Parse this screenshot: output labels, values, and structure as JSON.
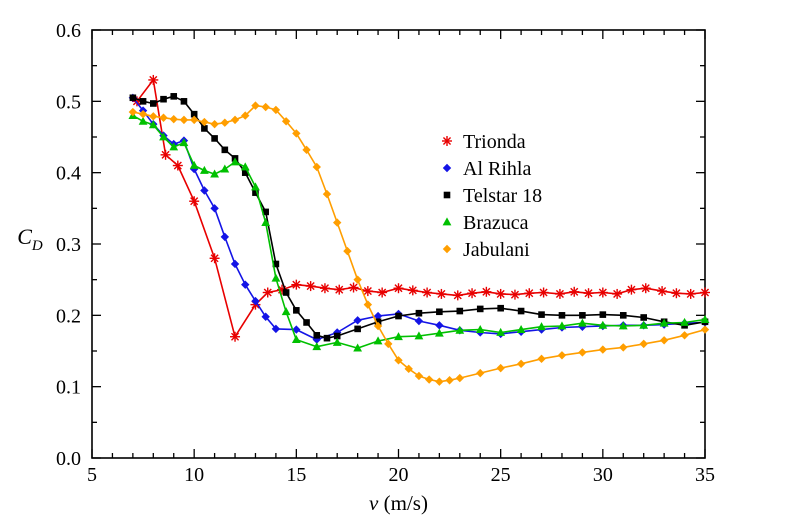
{
  "chart_data": {
    "type": "line",
    "title": "",
    "xlabel": "v (m/s)",
    "ylabel": "C_D",
    "xlabel_parts": [
      {
        "text": "v",
        "italic": true,
        "sub": false
      },
      {
        "text": " (m/s)",
        "italic": false,
        "sub": false
      }
    ],
    "ylabel_parts": [
      {
        "text": "C",
        "italic": true,
        "sub": false
      },
      {
        "text": "D",
        "italic": true,
        "sub": true
      }
    ],
    "xlim": [
      5,
      35
    ],
    "ylim": [
      0.0,
      0.6
    ],
    "x_ticks_major": [
      5,
      10,
      15,
      20,
      25,
      30,
      35
    ],
    "x_minor_step": 1,
    "y_ticks_major": [
      0.0,
      0.1,
      0.2,
      0.3,
      0.4,
      0.5,
      0.6
    ],
    "y_minor_step": 0.05,
    "grid": false,
    "legend_position": "inside-upper-right",
    "frame_color": "#000000",
    "series": [
      {
        "name": "Trionda",
        "color": "#e80000",
        "marker": "star",
        "x": [
          7.2,
          8.0,
          8.6,
          9.2,
          10,
          11,
          12,
          13,
          13.6,
          14.3,
          15,
          15.7,
          16.4,
          17.1,
          17.8,
          18.5,
          19.2,
          20,
          20.7,
          21.4,
          22.1,
          22.9,
          23.6,
          24.3,
          25,
          25.7,
          26.4,
          27.1,
          27.9,
          28.6,
          29.3,
          30,
          30.7,
          31.4,
          32.1,
          32.9,
          33.6,
          34.3,
          35
        ],
        "y": [
          0.5,
          0.53,
          0.425,
          0.41,
          0.36,
          0.28,
          0.17,
          0.215,
          0.232,
          0.236,
          0.243,
          0.241,
          0.238,
          0.236,
          0.239,
          0.234,
          0.232,
          0.238,
          0.235,
          0.232,
          0.23,
          0.228,
          0.231,
          0.233,
          0.23,
          0.229,
          0.231,
          0.232,
          0.23,
          0.233,
          0.231,
          0.232,
          0.23,
          0.236,
          0.238,
          0.234,
          0.231,
          0.23,
          0.232
        ]
      },
      {
        "name": "Al Rihla",
        "color": "#1414e6",
        "marker": "diamond",
        "x": [
          7,
          7.5,
          8,
          8.5,
          9,
          9.5,
          10,
          10.5,
          11,
          11.5,
          12,
          12.5,
          13,
          13.5,
          14,
          15,
          16,
          17,
          18,
          19,
          20,
          21,
          22,
          23,
          24,
          25,
          26,
          27,
          28,
          29,
          30,
          31,
          32,
          33,
          34,
          35
        ],
        "y": [
          0.505,
          0.487,
          0.468,
          0.452,
          0.44,
          0.445,
          0.405,
          0.375,
          0.35,
          0.31,
          0.272,
          0.243,
          0.22,
          0.198,
          0.181,
          0.18,
          0.166,
          0.176,
          0.193,
          0.199,
          0.202,
          0.192,
          0.186,
          0.179,
          0.176,
          0.174,
          0.177,
          0.18,
          0.183,
          0.184,
          0.185,
          0.186,
          0.186,
          0.187,
          0.189,
          0.19
        ]
      },
      {
        "name": "Telstar 18",
        "color": "#000000",
        "marker": "square",
        "x": [
          7,
          7.5,
          8,
          8.5,
          9,
          9.5,
          10,
          10.5,
          11,
          11.5,
          12,
          12.5,
          13,
          13.5,
          14,
          14.5,
          15,
          15.5,
          16,
          16.5,
          17,
          18,
          19,
          20,
          21,
          22,
          23,
          24,
          25,
          26,
          27,
          28,
          29,
          30,
          31,
          32,
          33,
          34,
          35
        ],
        "y": [
          0.505,
          0.5,
          0.497,
          0.503,
          0.507,
          0.5,
          0.482,
          0.462,
          0.448,
          0.432,
          0.42,
          0.4,
          0.372,
          0.345,
          0.272,
          0.232,
          0.207,
          0.19,
          0.172,
          0.168,
          0.171,
          0.181,
          0.191,
          0.199,
          0.203,
          0.205,
          0.206,
          0.209,
          0.21,
          0.206,
          0.201,
          0.2,
          0.2,
          0.201,
          0.2,
          0.197,
          0.191,
          0.186,
          0.191
        ]
      },
      {
        "name": "Brazuca",
        "color": "#00c000",
        "marker": "triangle-up",
        "x": [
          7,
          7.5,
          8,
          8.5,
          9,
          9.5,
          10,
          10.5,
          11,
          11.5,
          12,
          12.5,
          13,
          13.5,
          14,
          14.5,
          15,
          16,
          17,
          18,
          19,
          20,
          21,
          22,
          23,
          24,
          25,
          26,
          27,
          28,
          29,
          30,
          31,
          32,
          33,
          34,
          35
        ],
        "y": [
          0.48,
          0.472,
          0.467,
          0.45,
          0.436,
          0.442,
          0.41,
          0.403,
          0.398,
          0.405,
          0.415,
          0.408,
          0.38,
          0.33,
          0.252,
          0.205,
          0.166,
          0.156,
          0.162,
          0.154,
          0.164,
          0.17,
          0.171,
          0.175,
          0.179,
          0.18,
          0.176,
          0.18,
          0.184,
          0.185,
          0.189,
          0.186,
          0.185,
          0.186,
          0.189,
          0.19,
          0.194
        ]
      },
      {
        "name": "Jabulani",
        "color": "#ff9e00",
        "marker": "diamond",
        "x": [
          7,
          7.5,
          8,
          8.5,
          9,
          9.5,
          10,
          10.5,
          11,
          11.5,
          12,
          12.5,
          13,
          13.5,
          14,
          14.5,
          15,
          15.5,
          16,
          16.5,
          17,
          17.5,
          18,
          18.5,
          19,
          19.5,
          20,
          20.5,
          21,
          21.5,
          22,
          22.5,
          23,
          24,
          25,
          26,
          27,
          28,
          29,
          30,
          31,
          32,
          33,
          34,
          35
        ],
        "y": [
          0.485,
          0.482,
          0.479,
          0.477,
          0.475,
          0.474,
          0.474,
          0.471,
          0.468,
          0.47,
          0.474,
          0.48,
          0.494,
          0.492,
          0.488,
          0.472,
          0.455,
          0.432,
          0.408,
          0.37,
          0.33,
          0.29,
          0.25,
          0.215,
          0.185,
          0.16,
          0.137,
          0.125,
          0.115,
          0.11,
          0.107,
          0.109,
          0.112,
          0.119,
          0.126,
          0.132,
          0.139,
          0.144,
          0.148,
          0.152,
          0.155,
          0.16,
          0.165,
          0.172,
          0.18
        ]
      }
    ]
  }
}
